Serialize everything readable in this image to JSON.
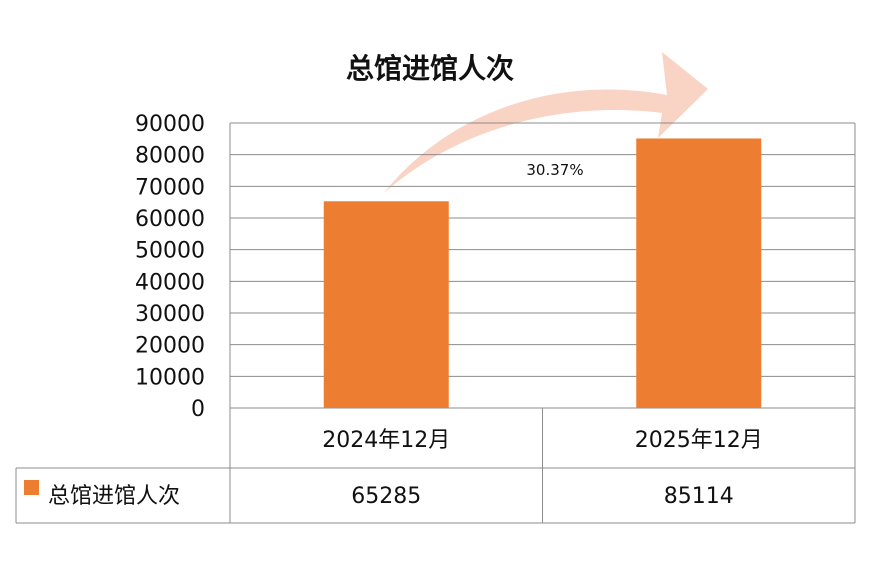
{
  "chart_data": {
    "type": "bar",
    "title": "总馆进馆人次",
    "categories": [
      "2024年12月",
      "2025年12月"
    ],
    "series": [
      {
        "name": "总馆进馆人次",
        "values": [
          65285,
          85114
        ],
        "color": "#ED7D31"
      }
    ],
    "ylim": [
      0,
      90000
    ],
    "yticks": [
      "0",
      "10000",
      "20000",
      "30000",
      "40000",
      "50000",
      "60000",
      "70000",
      "80000",
      "90000"
    ],
    "grid": true,
    "data_table": true,
    "annotation": "30.37%",
    "arrow_color": "#F9D3C4"
  }
}
